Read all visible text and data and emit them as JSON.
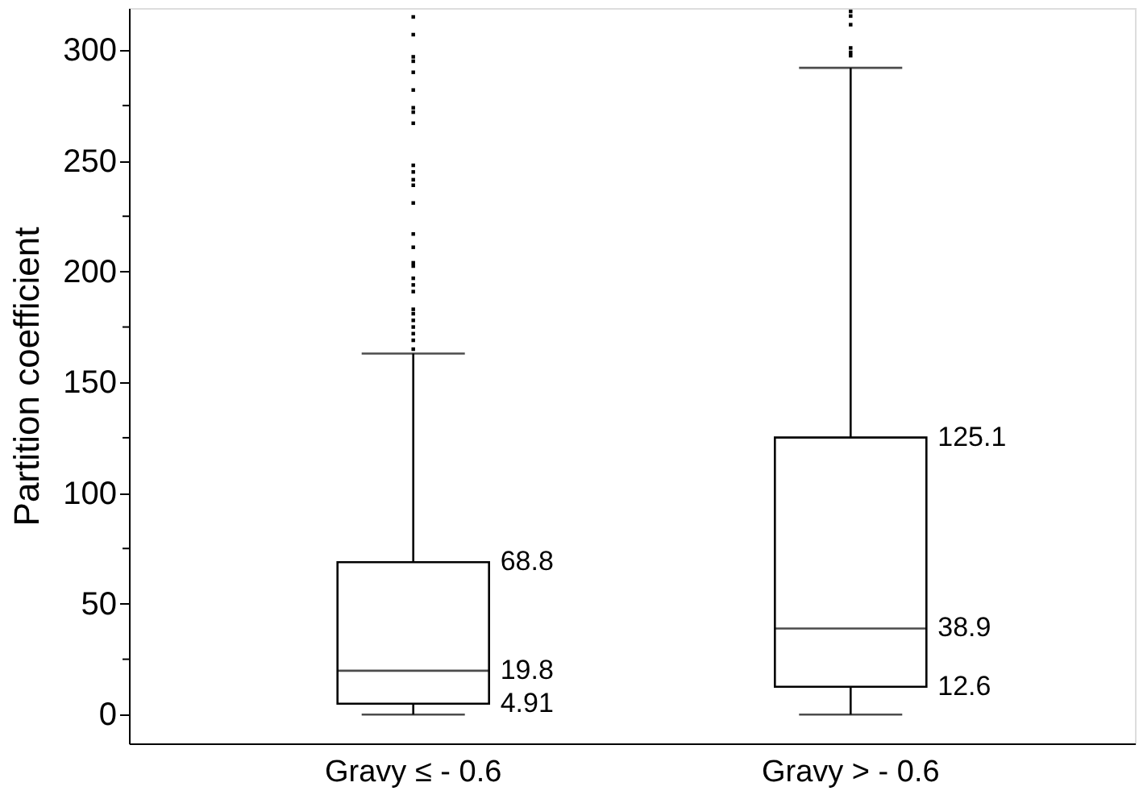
{
  "chart_data": {
    "type": "box",
    "ylabel": "Partition coefficient",
    "categories": [
      "Gravy ≤ - 0.6",
      "Gravy > - 0.6"
    ],
    "boxes": [
      {
        "low": 0,
        "q1": 4.91,
        "median": 19.8,
        "q3": 68.8,
        "high": 163,
        "outliers": [
          165,
          169,
          172,
          175,
          178,
          181,
          183,
          191,
          194,
          197,
          202.5,
          204,
          211,
          217,
          231,
          239,
          241.5,
          245,
          248,
          267,
          272,
          274,
          282,
          290,
          295,
          297,
          307,
          315
        ]
      },
      {
        "low": 0,
        "q1": 12.6,
        "median": 38.9,
        "q3": 125.1,
        "high": 292,
        "outliers": [
          297.5,
          299,
          301,
          311.5,
          315.4,
          317.5
        ]
      }
    ],
    "ylim": [
      -13,
      319
    ],
    "yticks": [
      0,
      {
        "value": 25,
        "label": null
      },
      50,
      {
        "value": 75,
        "label": null
      },
      100,
      {
        "value": 125,
        "label": null
      },
      150,
      {
        "value": 175,
        "label": null
      },
      200,
      {
        "value": 225,
        "label": null
      },
      250,
      {
        "value": 275,
        "label": null
      },
      300
    ],
    "annotations": [
      "68.8",
      "19.8",
      "4.91",
      "125.1",
      "38.9",
      "12.6"
    ],
    "grid": false
  }
}
